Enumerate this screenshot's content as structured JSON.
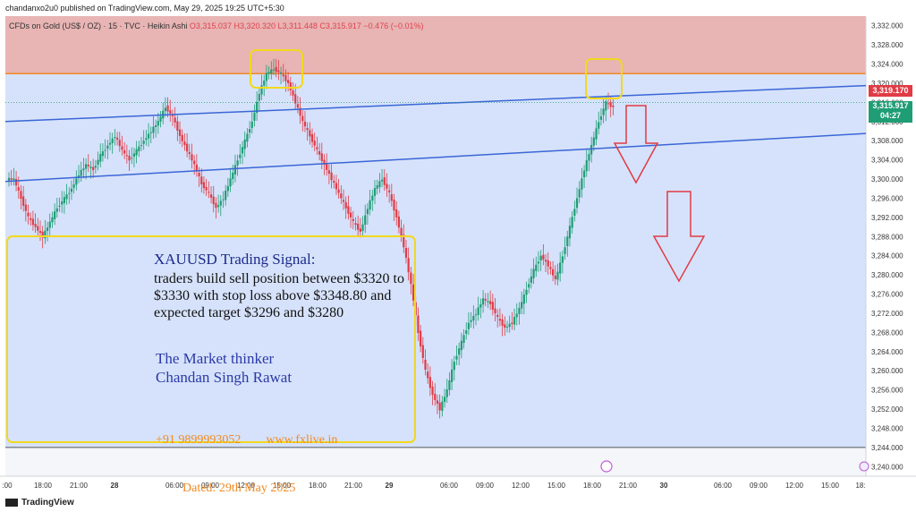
{
  "header": {
    "published": "chandanxo2u0 published on TradingView.com, May 29, 2025 19:25 UTC+5:30"
  },
  "legend": {
    "symbol": "CFDs on Gold (US$ / OZ) · 15 · TVC · Heikin Ashi",
    "ohlc": "O3,315.037 H3,320.320 L3,311.448 C3,315.917",
    "change": "−0.476 (−0.01%)"
  },
  "signal": {
    "title": "XAUUSD Trading Signal:",
    "body": "traders build sell position between $3320 to $3330 with stop loss above $3348.80 and expected target $3296 and $3280",
    "author_line1": "The Market thinker",
    "author_line2": "Chandan Singh Rawat",
    "contact": "+91 9899993052        www.fxlive.in",
    "dated": "Dated: 29th May 2025"
  },
  "price_labels": {
    "resistance": "3,319.170",
    "last": "3,315.917",
    "countdown": "04:27"
  },
  "footer": {
    "brand": "TradingView"
  },
  "colors": {
    "up": "#1f9d74",
    "down": "#e13b45",
    "zone_sell": "#e8b4b4",
    "zone_range": "#d6e2fb",
    "trend": "#3a66d6",
    "box_yellow": "#f2d81e",
    "arrow": "#e13b45"
  },
  "chart_data": {
    "type": "candlestick",
    "title": "",
    "ylim": [
      3238,
      3334
    ],
    "y_ticks": [
      "3,332.000",
      "3,328.000",
      "3,324.000",
      "3,320.000",
      "3,316.000",
      "3,312.000",
      "3,308.000",
      "3,304.000",
      "3,300.000",
      "3,296.000",
      "3,292.000",
      "3,288.000",
      "3,284.000",
      "3,280.000",
      "3,276.000",
      "3,272.000",
      "3,268.000",
      "3,264.000",
      "3,260.000",
      "3,256.000",
      "3,252.000",
      "3,248.000",
      "3,244.000",
      "3,240.000"
    ],
    "x_ticks": [
      ":00",
      "18:00",
      "21:00",
      "28",
      "06:00",
      "09:00",
      "12:00",
      "15:00",
      "18:00",
      "21:00",
      "29",
      "06:00",
      "09:00",
      "12:00",
      "15:00",
      "18:00",
      "21:00",
      "30",
      "06:00",
      "09:00",
      "12:00",
      "15:00",
      "18:"
    ],
    "sell_zone": [
      3322,
      3334
    ],
    "range_zone": [
      3244,
      3322
    ],
    "trendlines": [
      {
        "from": [
          "27 15:00",
          3312
        ],
        "to": [
          "29 21:00",
          3319
        ]
      },
      {
        "from": [
          "27 15:00",
          3299
        ],
        "to": [
          "29 21:00",
          3310
        ]
      }
    ],
    "annotations": [
      {
        "type": "highlight-box",
        "near": "28 13:00–15:30",
        "y": [
          3320,
          3327
        ]
      },
      {
        "type": "highlight-box",
        "near": "29 17:30–18:30",
        "y": [
          3318,
          3326
        ]
      },
      {
        "type": "down-arrow",
        "near": "29 20:00",
        "from": 3316,
        "to": 3300
      },
      {
        "type": "down-arrow",
        "near": "29 21:30",
        "from": 3297,
        "to": 3279
      }
    ],
    "series_close_approx": [
      3300,
      3296,
      3292,
      3290,
      3288,
      3291,
      3294,
      3296,
      3298,
      3301,
      3303,
      3302,
      3305,
      3307,
      3309,
      3306,
      3304,
      3306,
      3308,
      3310,
      3312,
      3315,
      3313,
      3309,
      3306,
      3303,
      3299,
      3297,
      3294,
      3296,
      3300,
      3304,
      3308,
      3312,
      3318,
      3322,
      3323,
      3322,
      3320,
      3316,
      3312,
      3309,
      3306,
      3303,
      3300,
      3297,
      3294,
      3291,
      3289,
      3294,
      3298,
      3300,
      3297,
      3292,
      3286,
      3278,
      3268,
      3260,
      3255,
      3252,
      3256,
      3262,
      3266,
      3270,
      3272,
      3275,
      3274,
      3271,
      3269,
      3270,
      3273,
      3277,
      3281,
      3284,
      3282,
      3279,
      3284,
      3290,
      3296,
      3302,
      3307,
      3312,
      3316,
      3315
    ]
  }
}
